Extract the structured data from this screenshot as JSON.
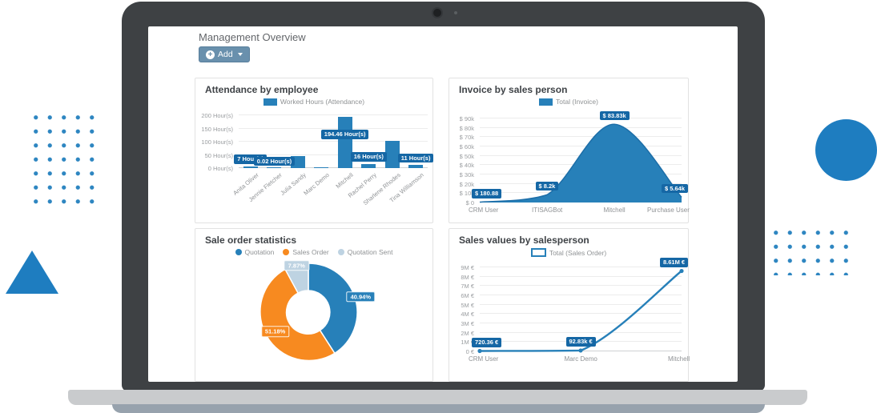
{
  "page": {
    "title": "Management Overview"
  },
  "toolbar": {
    "add_label": "Add"
  },
  "chart_data": [
    {
      "id": "attendance",
      "type": "bar",
      "title": "Attendance by employee",
      "legend": [
        {
          "label": "Worked Hours (Attendance)",
          "color": "#2780b9"
        }
      ],
      "categories": [
        "Anita Oliver",
        "Jennie Fletcher",
        "Julia Sandy",
        "Marc Demo",
        "Mitchell",
        "Rachel Perry",
        "Sharlene Rhodes",
        "Tina Williamson"
      ],
      "values": [
        7,
        0.02,
        47,
        3,
        194.46,
        16,
        103,
        11
      ],
      "data_labels": [
        "7 Hour(s)",
        "0.02 Hour(s)",
        "",
        "",
        "194.46 Hour(s)",
        "16 Hour(s)",
        "",
        "11 Hour(s)"
      ],
      "y_ticks": [
        "0 Hour(s)",
        "50 Hour(s)",
        "100 Hour(s)",
        "150 Hour(s)",
        "200 Hour(s)"
      ],
      "ylim": [
        0,
        200
      ],
      "color": "#2780b9",
      "grid": true
    },
    {
      "id": "invoice",
      "type": "area",
      "title": "Invoice by sales person",
      "legend": [
        {
          "label": "Total (Invoice)",
          "color": "#2780b9"
        }
      ],
      "categories": [
        "CRM User",
        "ITISAGBot",
        "Mitchell",
        "Purchase User"
      ],
      "values": [
        180.88,
        8200,
        83830,
        5640
      ],
      "data_labels": [
        "$ 180.88",
        "$ 8.2k",
        "$ 83.83k",
        "$ 5.64k"
      ],
      "y_ticks": [
        "$ 0",
        "$ 10k",
        "$ 20k",
        "$ 30k",
        "$ 40k",
        "$ 50k",
        "$ 60k",
        "$ 70k",
        "$ 80k",
        "$ 90k"
      ],
      "ylim": [
        0,
        90000
      ],
      "color": "#2780b9",
      "grid": true
    },
    {
      "id": "sale-order-statistics",
      "type": "pie",
      "title": "Sale order statistics",
      "legend": [
        {
          "label": "Quotation",
          "color": "#2780b9"
        },
        {
          "label": "Sales Order",
          "color": "#f78a20"
        },
        {
          "label": "Quotation Sent",
          "color": "#bed3e2"
        }
      ],
      "labels": [
        "Quotation",
        "Sales Order",
        "Quotation Sent"
      ],
      "values": [
        40.94,
        51.18,
        7.87
      ],
      "data_labels": [
        "40.94%",
        "51.18%",
        "7.87%"
      ],
      "colors": [
        "#2780b9",
        "#f78a20",
        "#bed3e2"
      ]
    },
    {
      "id": "sales-values",
      "type": "line",
      "title": "Sales values by salesperson",
      "legend": [
        {
          "label": "Total (Sales Order)",
          "color": "#2780b9",
          "style": "outline"
        }
      ],
      "categories": [
        "CRM User",
        "Marc Demo",
        "Mitchell"
      ],
      "values": [
        720.36,
        92830,
        8610000
      ],
      "data_labels": [
        "720.36 €",
        "92.83k €",
        "8.61M €"
      ],
      "y_ticks": [
        "0 €",
        "1M €",
        "2M €",
        "3M €",
        "4M €",
        "5M €",
        "6M €",
        "7M €",
        "8M €",
        "9M €"
      ],
      "ylim": [
        0,
        9000000
      ],
      "color": "#2780b9",
      "grid": true
    }
  ]
}
